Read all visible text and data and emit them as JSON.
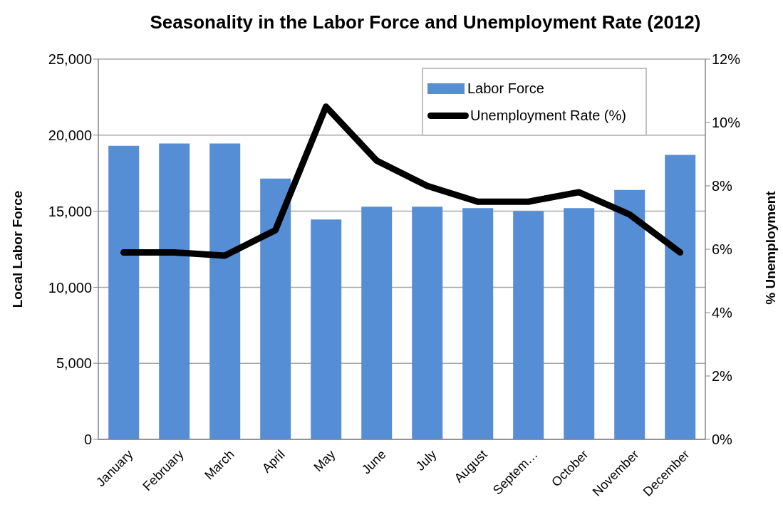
{
  "chart_data": {
    "type": "bar",
    "title": "Seasonality in the Labor Force and Unemployment Rate (2012)",
    "ylabel": "Local Labor Force",
    "y2label": "% Unemployment",
    "categories": [
      "January",
      "February",
      "March",
      "April",
      "May",
      "June",
      "July",
      "August",
      "Septem…",
      "October",
      "November",
      "December"
    ],
    "series": [
      {
        "name": "Labor Force",
        "color": "#558ed5",
        "values": [
          19300,
          19450,
          19450,
          17150,
          14450,
          15300,
          15300,
          15200,
          15000,
          15200,
          16400,
          18700
        ]
      },
      {
        "name": "Unemployment Rate (%)",
        "type": "line",
        "color": "#000000",
        "axis": "y2",
        "values": [
          5.9,
          5.9,
          5.8,
          6.6,
          10.5,
          8.8,
          8.0,
          7.5,
          7.5,
          7.8,
          7.1,
          5.9
        ]
      }
    ],
    "ylim": [
      0,
      25000
    ],
    "yticks": [
      0,
      {
        "value": 5000,
        "label": "5,000"
      },
      {
        "value": 10000,
        "label": "10,000"
      },
      {
        "value": 15000,
        "label": "15,000"
      },
      {
        "value": 20000,
        "label": "20,000"
      },
      {
        "value": 25000,
        "label": "25,000"
      }
    ],
    "y2lim": [
      0,
      12
    ],
    "y2ticks": [
      {
        "value": 0,
        "label": "0%"
      },
      {
        "value": 2,
        "label": "2%"
      },
      {
        "value": 4,
        "label": "4%"
      },
      {
        "value": 6,
        "label": "6%"
      },
      {
        "value": 8,
        "label": "8%"
      },
      {
        "value": 10,
        "label": "10%"
      },
      {
        "value": 12,
        "label": "12%"
      }
    ],
    "grid": "y",
    "legend": "top right"
  }
}
